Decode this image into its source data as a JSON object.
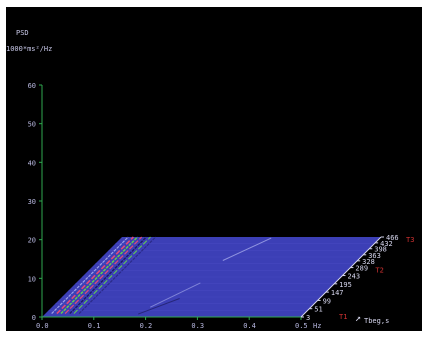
{
  "chart_data": {
    "type": "heatmap",
    "title": "PSD",
    "ylabel": "1000*ms²/Hz",
    "xlabel": "Hz",
    "depth_label": "Tbeg,s",
    "x_ticks": [
      "0.0",
      "0.1",
      "0.2",
      "0.3",
      "0.4",
      "0.5"
    ],
    "x_range": [
      0,
      0.5
    ],
    "y_ticks": [
      "0",
      "10",
      "20",
      "30",
      "40",
      "50",
      "60"
    ],
    "y_range": [
      0,
      60
    ],
    "depth_ticks": [
      "3",
      "51",
      "99",
      "147",
      "195",
      "243",
      "289",
      "328",
      "363",
      "398",
      "432",
      "466"
    ],
    "depth_range": [
      3,
      466
    ],
    "markers": [
      {
        "label": "T1",
        "depth": 3
      },
      {
        "label": "T2",
        "depth": 289
      },
      {
        "label": "T3",
        "depth": 466
      }
    ],
    "grid": false,
    "colors": {
      "background": "#000000",
      "surface": "#3c3fb6",
      "axis": "#2fa84f",
      "tick_text": "#b8b8e0",
      "marker_text": "#d23232",
      "peak_low": "#62d24c",
      "peak_high": "#e04a7a"
    }
  }
}
